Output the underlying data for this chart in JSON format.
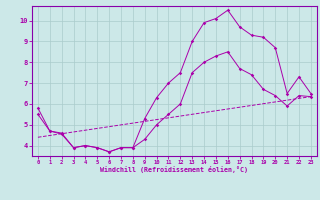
{
  "xlabel": "Windchill (Refroidissement éolien,°C)",
  "bg_color": "#cce8e8",
  "grid_color": "#aacccc",
  "line_color": "#aa00aa",
  "spine_color": "#8800aa",
  "xlim": [
    -0.5,
    23.5
  ],
  "ylim": [
    3.5,
    10.7
  ],
  "xticks": [
    0,
    1,
    2,
    3,
    4,
    5,
    6,
    7,
    8,
    9,
    10,
    11,
    12,
    13,
    14,
    15,
    16,
    17,
    18,
    19,
    20,
    21,
    22,
    23
  ],
  "yticks": [
    4,
    5,
    6,
    7,
    8,
    9,
    10
  ],
  "curve1_x": [
    0,
    1,
    2,
    3,
    4,
    5,
    6,
    7,
    8,
    9,
    10,
    11,
    12,
    13,
    14,
    15,
    16,
    17,
    18,
    19,
    20,
    21,
    22,
    23
  ],
  "curve1_y": [
    5.8,
    4.7,
    4.6,
    3.9,
    4.0,
    3.9,
    3.7,
    3.9,
    3.9,
    5.3,
    6.3,
    7.0,
    7.5,
    9.0,
    9.9,
    10.1,
    10.5,
    9.7,
    9.3,
    9.2,
    8.7,
    6.5,
    7.3,
    6.5
  ],
  "curve2_x": [
    0,
    1,
    2,
    3,
    4,
    5,
    6,
    7,
    8,
    9,
    10,
    11,
    12,
    13,
    14,
    15,
    16,
    17,
    18,
    19,
    20,
    21,
    22,
    23
  ],
  "curve2_y": [
    5.5,
    4.7,
    4.55,
    3.9,
    4.0,
    3.9,
    3.7,
    3.9,
    3.9,
    4.3,
    5.0,
    5.5,
    6.0,
    7.5,
    8.0,
    8.3,
    8.5,
    7.7,
    7.4,
    6.7,
    6.4,
    5.9,
    6.4,
    6.35
  ],
  "line_x": [
    0,
    23
  ],
  "line_y": [
    4.4,
    6.35
  ]
}
